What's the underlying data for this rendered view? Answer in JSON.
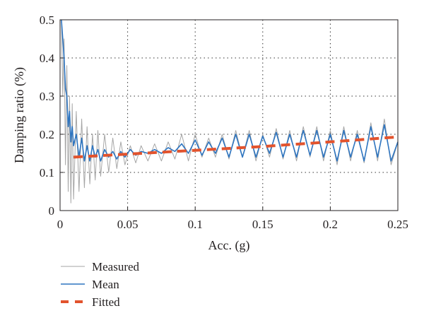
{
  "chart_data": {
    "type": "line",
    "xlabel": "Acc. (g)",
    "ylabel": "Damping ratio (%)",
    "xlim": [
      0,
      0.25
    ],
    "ylim": [
      0,
      0.5
    ],
    "x_ticks": [
      0,
      0.05,
      0.1,
      0.15,
      0.2,
      0.25
    ],
    "x_tick_labels": [
      "0",
      "0.05",
      "0.1",
      "0.15",
      "0.2",
      "0.25"
    ],
    "y_ticks": [
      0,
      0.1,
      0.2,
      0.3,
      0.4,
      0.5
    ],
    "y_tick_labels": [
      "0",
      "0.1",
      "0.2",
      "0.3",
      "0.4",
      "0.5"
    ],
    "grid": true,
    "grid_style": "dotted",
    "legend_position": "bottom-left, below plot",
    "series": [
      {
        "name": "Measured",
        "color": "#a6a6a6",
        "style": "solid-thin",
        "x": [
          0.001,
          0.002,
          0.003,
          0.004,
          0.005,
          0.006,
          0.007,
          0.008,
          0.009,
          0.01,
          0.012,
          0.014,
          0.016,
          0.018,
          0.02,
          0.022,
          0.024,
          0.026,
          0.028,
          0.03,
          0.033,
          0.036,
          0.039,
          0.042,
          0.045,
          0.048,
          0.052,
          0.056,
          0.06,
          0.065,
          0.07,
          0.075,
          0.08,
          0.085,
          0.09,
          0.095,
          0.1,
          0.105,
          0.11,
          0.115,
          0.12,
          0.125,
          0.13,
          0.135,
          0.14,
          0.145,
          0.15,
          0.155,
          0.16,
          0.165,
          0.17,
          0.175,
          0.18,
          0.185,
          0.19,
          0.195,
          0.2,
          0.205,
          0.21,
          0.215,
          0.22,
          0.225,
          0.23,
          0.235,
          0.24,
          0.245,
          0.25
        ],
        "y": [
          0.5,
          0.3,
          0.45,
          0.12,
          0.38,
          0.05,
          0.3,
          0.02,
          0.28,
          0.03,
          0.26,
          0.05,
          0.24,
          0.06,
          0.22,
          0.07,
          0.2,
          0.08,
          0.21,
          0.09,
          0.2,
          0.1,
          0.19,
          0.11,
          0.18,
          0.12,
          0.17,
          0.125,
          0.17,
          0.13,
          0.175,
          0.13,
          0.18,
          0.135,
          0.2,
          0.13,
          0.2,
          0.14,
          0.19,
          0.14,
          0.2,
          0.135,
          0.21,
          0.14,
          0.21,
          0.13,
          0.2,
          0.14,
          0.215,
          0.135,
          0.21,
          0.13,
          0.22,
          0.14,
          0.22,
          0.13,
          0.21,
          0.12,
          0.22,
          0.13,
          0.21,
          0.125,
          0.23,
          0.13,
          0.24,
          0.12,
          0.18
        ]
      },
      {
        "name": "Mean",
        "color": "#2e75c0",
        "style": "solid",
        "x": [
          0.001,
          0.002,
          0.003,
          0.004,
          0.005,
          0.006,
          0.007,
          0.008,
          0.009,
          0.01,
          0.012,
          0.014,
          0.016,
          0.018,
          0.02,
          0.022,
          0.024,
          0.026,
          0.028,
          0.03,
          0.033,
          0.036,
          0.039,
          0.042,
          0.045,
          0.048,
          0.052,
          0.056,
          0.06,
          0.065,
          0.07,
          0.075,
          0.08,
          0.085,
          0.09,
          0.095,
          0.1,
          0.105,
          0.11,
          0.115,
          0.12,
          0.125,
          0.13,
          0.135,
          0.14,
          0.145,
          0.15,
          0.155,
          0.16,
          0.165,
          0.17,
          0.175,
          0.18,
          0.185,
          0.19,
          0.195,
          0.2,
          0.205,
          0.21,
          0.215,
          0.22,
          0.225,
          0.23,
          0.235,
          0.24,
          0.245,
          0.25
        ],
        "y": [
          0.5,
          0.45,
          0.4,
          0.32,
          0.3,
          0.22,
          0.26,
          0.18,
          0.22,
          0.17,
          0.2,
          0.14,
          0.19,
          0.13,
          0.17,
          0.13,
          0.17,
          0.14,
          0.16,
          0.13,
          0.16,
          0.14,
          0.155,
          0.135,
          0.155,
          0.14,
          0.16,
          0.145,
          0.155,
          0.15,
          0.16,
          0.15,
          0.165,
          0.155,
          0.175,
          0.15,
          0.185,
          0.145,
          0.18,
          0.15,
          0.19,
          0.14,
          0.2,
          0.14,
          0.2,
          0.14,
          0.195,
          0.15,
          0.205,
          0.14,
          0.2,
          0.14,
          0.21,
          0.145,
          0.21,
          0.14,
          0.2,
          0.13,
          0.21,
          0.14,
          0.2,
          0.13,
          0.22,
          0.14,
          0.225,
          0.13,
          0.18
        ]
      },
      {
        "name": "Fitted",
        "color": "#e2532d",
        "style": "dashed",
        "x": [
          0.01,
          0.05,
          0.1,
          0.15,
          0.2,
          0.25
        ],
        "y": [
          0.14,
          0.148,
          0.158,
          0.168,
          0.18,
          0.193
        ]
      }
    ]
  }
}
